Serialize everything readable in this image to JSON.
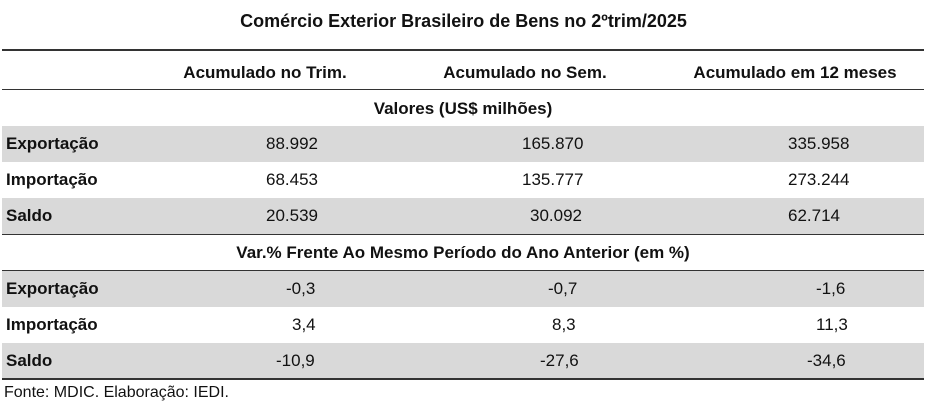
{
  "title": "Comércio Exterior Brasileiro de Bens no 2ºtrim/2025",
  "columns": [
    "Acumulado no Trim.",
    "Acumulado no Sem.",
    "Acumulado em 12 meses"
  ],
  "section_values": {
    "heading": "Valores  (US$ milhões)",
    "rows": [
      {
        "label": "Exportação",
        "values": [
          "88.992",
          "165.870",
          "335.958"
        ]
      },
      {
        "label": "Importação",
        "values": [
          "68.453",
          "135.777",
          "273.244"
        ]
      },
      {
        "label": "Saldo",
        "values": [
          "20.539",
          "30.092",
          "62.714"
        ]
      }
    ]
  },
  "section_var": {
    "heading": "Var.% Frente Ao Mesmo Período do Ano Anterior (em %)",
    "rows": [
      {
        "label": "Exportação",
        "values": [
          "-0,3",
          "-0,7",
          "-1,6"
        ]
      },
      {
        "label": "Importação",
        "values": [
          "3,4",
          "8,3",
          "11,3"
        ]
      },
      {
        "label": "Saldo",
        "values": [
          "-10,9",
          "-27,6",
          "-34,6"
        ]
      }
    ]
  },
  "source": "Fonte: MDIC. Elaboração: IEDI.",
  "colors": {
    "row_shade": "#d9d9d9",
    "rule": "#333333"
  }
}
